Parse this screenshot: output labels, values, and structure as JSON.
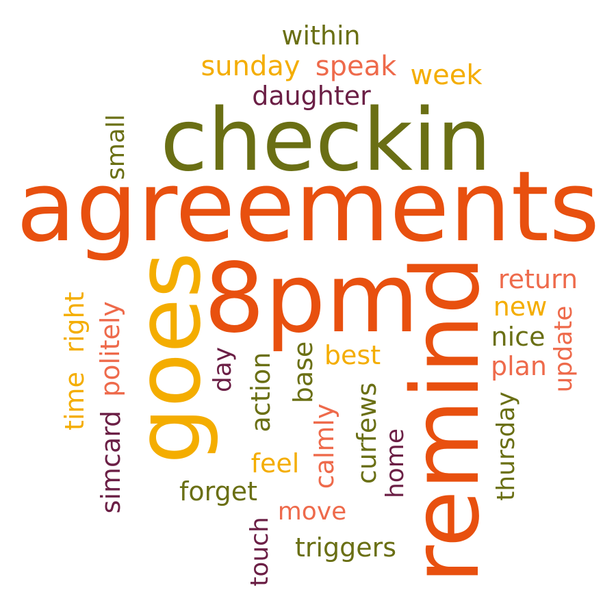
{
  "palette": {
    "orange": "#e8500f",
    "olive": "#6a6f14",
    "gold": "#f4ad00",
    "salmon": "#ee6a4b",
    "plum": "#6b1f45"
  },
  "words": {
    "agreements": "agreements",
    "checkin": "checkin",
    "remind": "remind",
    "8pm": "8pm",
    "goes": "goes",
    "within": "within",
    "sunday": "sunday",
    "speak": "speak",
    "week": "week",
    "daughter": "daughter",
    "small": "small",
    "return": "return",
    "new": "new",
    "nice": "nice",
    "plan": "plan",
    "update": "update",
    "time": "time",
    "right": "right",
    "politely": "politely",
    "day": "day",
    "base": "base",
    "best": "best",
    "action": "action",
    "curfews": "curfews",
    "calmly": "calmly",
    "home": "home",
    "thursday": "thursday",
    "simcard": "simcard",
    "feel": "feel",
    "forget": "forget",
    "move": "move",
    "touch": "touch",
    "triggers": "triggers"
  }
}
